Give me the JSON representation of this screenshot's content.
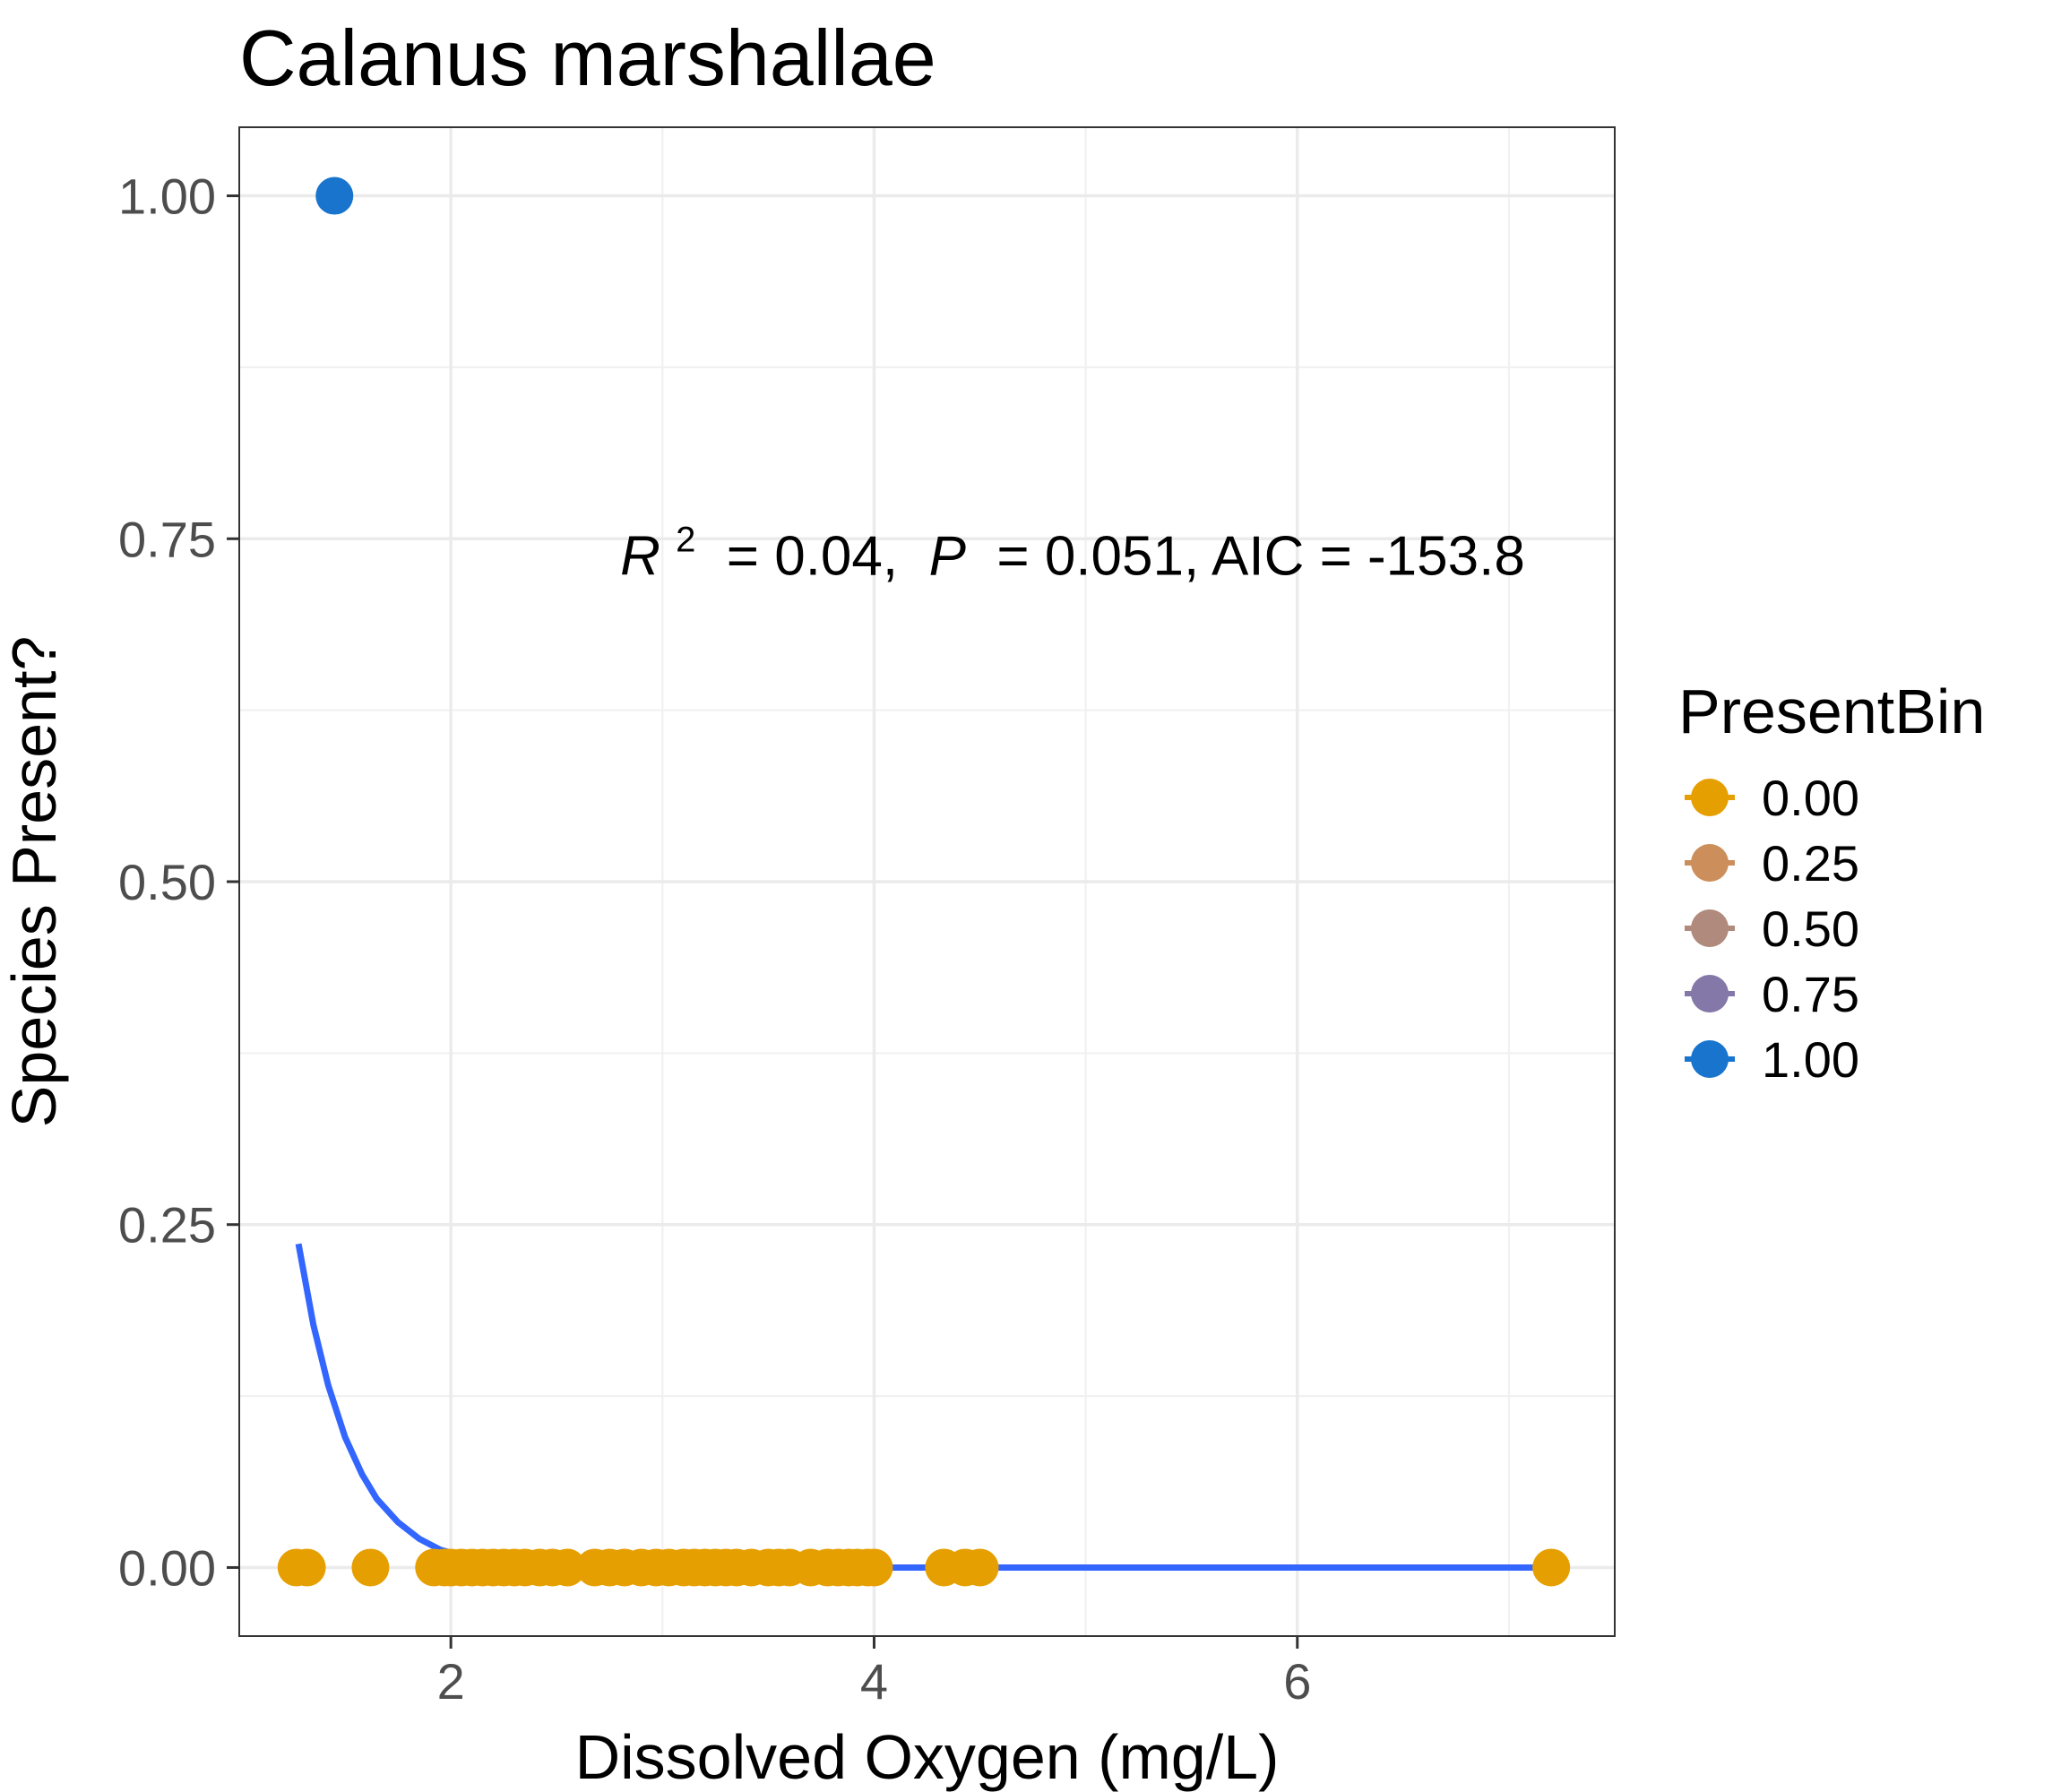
{
  "chart_data": {
    "type": "scatter",
    "title": "Calanus marshallae",
    "xlabel": "Dissolved Oxygen (mg/L)",
    "ylabel": "Species Present?",
    "xlim": [
      1.0,
      7.5
    ],
    "ylim": [
      -0.05,
      1.05
    ],
    "x_ticks": [
      2,
      4,
      6
    ],
    "x_tick_labels": [
      "2",
      "4",
      "6"
    ],
    "y_ticks": [
      0,
      0.25,
      0.5,
      0.75,
      1.0
    ],
    "y_tick_labels": [
      "0.00",
      "0.25",
      "0.50",
      "0.75",
      "1.00"
    ],
    "grid": true,
    "legend": {
      "title": "PresentBin",
      "position": "right",
      "entries": [
        {
          "label": "0.00",
          "color": "#E69F00"
        },
        {
          "label": "0.25",
          "color": "#CC8E5A"
        },
        {
          "label": "0.50",
          "color": "#B08A7C"
        },
        {
          "label": "0.75",
          "color": "#8378A8"
        },
        {
          "label": "1.00",
          "color": "#1874CD"
        }
      ]
    },
    "annotation": {
      "r2_symbol": "R",
      "r2_exp": "2",
      "r2_text": " = 0.04, ",
      "p_symbol": "P",
      "p_text": " = 0.051, AIC = -153.8",
      "x": 2.8,
      "y": 0.74
    },
    "series": [
      {
        "kind": "points",
        "color_value": 1.0,
        "color": "#1874CD",
        "x": [
          1.45
        ],
        "y": [
          1
        ]
      },
      {
        "kind": "points",
        "color_value": 0.0,
        "color": "#E69F00",
        "x": [
          1.27,
          1.32,
          1.62,
          1.92,
          1.97,
          2.0,
          2.05,
          2.1,
          2.15,
          2.2,
          2.25,
          2.3,
          2.35,
          2.42,
          2.48,
          2.55,
          2.68,
          2.75,
          2.82,
          2.9,
          2.97,
          3.03,
          3.1,
          3.15,
          3.2,
          3.25,
          3.3,
          3.35,
          3.42,
          3.5,
          3.55,
          3.6,
          3.7,
          3.78,
          3.83,
          3.88,
          3.92,
          3.97,
          4.0,
          4.33,
          4.43,
          4.5,
          7.2
        ],
        "y": [
          0,
          0,
          0,
          0,
          0,
          0,
          0,
          0,
          0,
          0,
          0,
          0,
          0,
          0,
          0,
          0,
          0,
          0,
          0,
          0,
          0,
          0,
          0,
          0,
          0,
          0,
          0,
          0,
          0,
          0,
          0,
          0,
          0,
          0,
          0,
          0,
          0,
          0,
          0,
          0,
          0,
          0,
          0
        ]
      },
      {
        "kind": "fit-line",
        "color": "#3366FF",
        "x": [
          1.28,
          1.35,
          1.42,
          1.5,
          1.58,
          1.65,
          1.75,
          1.85,
          1.95,
          2.05,
          2.2,
          2.4,
          2.6,
          3.0,
          4.0,
          5.0,
          6.0,
          7.2
        ],
        "y": [
          0.236,
          0.177,
          0.133,
          0.095,
          0.068,
          0.05,
          0.033,
          0.021,
          0.013,
          0.0085,
          0.0044,
          0.0018,
          0.0007,
          0.00012,
          0.0,
          0.0,
          0.0,
          0.0
        ]
      }
    ]
  }
}
